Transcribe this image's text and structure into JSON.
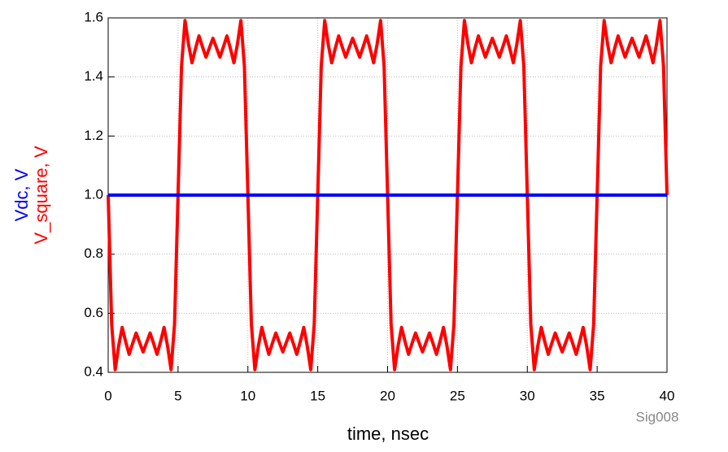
{
  "chart_data": {
    "type": "line",
    "xlabel": "time, nsec",
    "ylabels": [
      {
        "text": "Vdc, V",
        "color": "#0000ff"
      },
      {
        "text": "V_square, V",
        "color": "#ff0000"
      }
    ],
    "watermark": "Sig008",
    "xlim": [
      0,
      40
    ],
    "xticks": [
      0,
      5,
      10,
      15,
      20,
      25,
      30,
      35,
      40
    ],
    "ylim": [
      0.4,
      1.6
    ],
    "yticks": [
      0.4,
      0.6,
      0.8,
      {
        "value": 1.0,
        "label": "1.0"
      },
      1.2,
      1.4,
      1.6
    ],
    "grid": true,
    "series": [
      {
        "name": "Vdc",
        "color": "#0000ff",
        "x": [
          0,
          40
        ],
        "values": [
          1,
          1
        ]
      },
      {
        "name": "V_square",
        "color": "#ff0000",
        "x": [
          0,
          0.25,
          0.5,
          0.75,
          1,
          1.25,
          1.5,
          1.75,
          2,
          2.25,
          2.5,
          2.75,
          3,
          3.25,
          3.5,
          3.75,
          4,
          4.25,
          4.5,
          4.75,
          5,
          5.25,
          5.5,
          5.75,
          6,
          6.25,
          6.5,
          6.75,
          7,
          7.25,
          7.5,
          7.75,
          8,
          8.25,
          8.5,
          8.75,
          9,
          9.25,
          9.5,
          9.75,
          10,
          10.25,
          10.5,
          10.75,
          11,
          11.25,
          11.5,
          11.75,
          12,
          12.25,
          12.5,
          12.75,
          13,
          13.25,
          13.5,
          13.75,
          14,
          14.25,
          14.5,
          14.75,
          15,
          15.25,
          15.5,
          15.75,
          16,
          16.25,
          16.5,
          16.75,
          17,
          17.25,
          17.5,
          17.75,
          18,
          18.25,
          18.5,
          18.75,
          19,
          19.25,
          19.5,
          19.75,
          20,
          20.25,
          20.5,
          20.75,
          21,
          21.25,
          21.5,
          21.75,
          22,
          22.25,
          22.5,
          22.75,
          23,
          23.25,
          23.5,
          23.75,
          24,
          24.25,
          24.5,
          24.75,
          25,
          25.25,
          25.5,
          25.75,
          26,
          26.25,
          26.5,
          26.75,
          27,
          27.25,
          27.5,
          27.75,
          28,
          28.25,
          28.5,
          28.75,
          29,
          29.25,
          29.5,
          29.75,
          30,
          30.25,
          30.5,
          30.75,
          31,
          31.25,
          31.5,
          31.75,
          32,
          32.25,
          32.5,
          32.75,
          33,
          33.25,
          33.5,
          33.75,
          34,
          34.25,
          34.5,
          34.75,
          35,
          35.25,
          35.5,
          35.75,
          36,
          36.25,
          36.5,
          36.75,
          37,
          37.25,
          37.5,
          37.75,
          38,
          38.25,
          38.5,
          38.75,
          39,
          39.25,
          39.5,
          39.75,
          40
        ],
        "values": [
          1.0,
          0.563,
          0.409,
          0.489,
          0.552,
          0.504,
          0.461,
          0.498,
          0.533,
          0.501,
          0.469,
          0.501,
          0.533,
          0.498,
          0.461,
          0.504,
          0.552,
          0.489,
          0.409,
          0.563,
          1.0,
          1.437,
          1.591,
          1.511,
          1.448,
          1.496,
          1.539,
          1.502,
          1.467,
          1.499,
          1.531,
          1.499,
          1.467,
          1.502,
          1.539,
          1.496,
          1.448,
          1.511,
          1.591,
          1.437,
          1.0,
          0.563,
          0.409,
          0.489,
          0.552,
          0.504,
          0.461,
          0.498,
          0.533,
          0.501,
          0.469,
          0.501,
          0.533,
          0.498,
          0.461,
          0.504,
          0.552,
          0.489,
          0.409,
          0.563,
          1.0,
          1.437,
          1.591,
          1.511,
          1.448,
          1.496,
          1.539,
          1.502,
          1.467,
          1.499,
          1.531,
          1.499,
          1.467,
          1.502,
          1.539,
          1.496,
          1.448,
          1.511,
          1.591,
          1.437,
          1.0,
          0.563,
          0.409,
          0.489,
          0.552,
          0.504,
          0.461,
          0.498,
          0.533,
          0.501,
          0.469,
          0.501,
          0.533,
          0.498,
          0.461,
          0.504,
          0.552,
          0.489,
          0.409,
          0.563,
          1.0,
          1.437,
          1.591,
          1.511,
          1.448,
          1.496,
          1.539,
          1.502,
          1.467,
          1.499,
          1.531,
          1.499,
          1.467,
          1.502,
          1.539,
          1.496,
          1.448,
          1.511,
          1.591,
          1.437,
          1.0,
          0.563,
          0.409,
          0.489,
          0.552,
          0.504,
          0.461,
          0.498,
          0.533,
          0.501,
          0.469,
          0.501,
          0.533,
          0.498,
          0.461,
          0.504,
          0.552,
          0.489,
          0.409,
          0.563,
          1.0,
          1.437,
          1.591,
          1.511,
          1.448,
          1.496,
          1.539,
          1.502,
          1.467,
          1.499,
          1.531,
          1.499,
          1.467,
          1.502,
          1.539,
          1.496,
          1.448,
          1.511,
          1.591,
          1.437,
          1.0
        ]
      }
    ]
  }
}
